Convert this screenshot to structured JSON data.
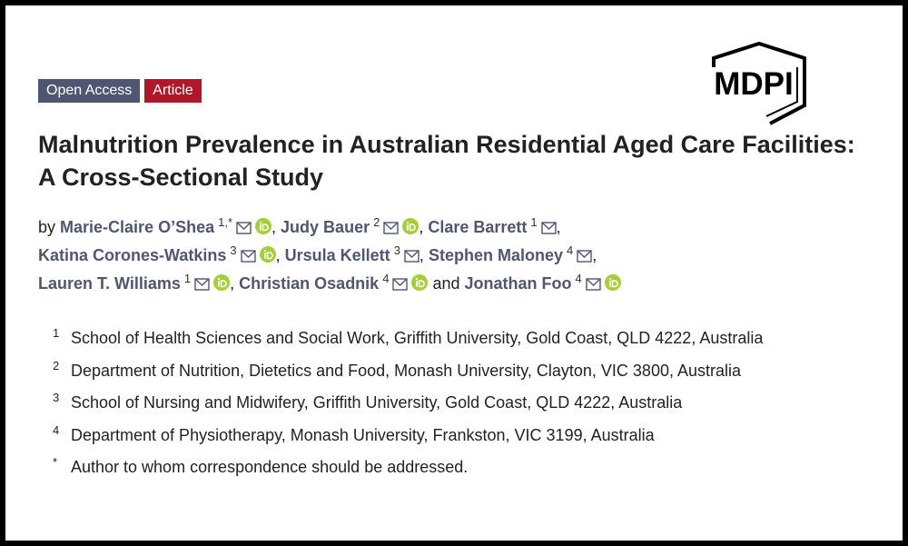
{
  "badges": [
    "Open Access",
    "Article"
  ],
  "publisher": "MDPI",
  "title": "Malnutrition Prevalence in Australian Residential Aged Care Facilities: A Cross-Sectional Study",
  "byline": {
    "prefix": "by",
    "conjunction": "and",
    "authors": [
      {
        "name": "Marie-Claire O’Shea",
        "affiliation": "1,*",
        "orcid": true,
        "separator": ","
      },
      {
        "name": "Judy Bauer",
        "affiliation": "2",
        "orcid": true,
        "separator": ","
      },
      {
        "name": "Clare Barrett",
        "affiliation": "1",
        "orcid": false,
        "separator": ","
      },
      {
        "name": "Katina Corones-Watkins",
        "affiliation": "3",
        "orcid": true,
        "separator": ","
      },
      {
        "name": "Ursula Kellett",
        "affiliation": "3",
        "orcid": false,
        "separator": ","
      },
      {
        "name": "Stephen Maloney",
        "affiliation": "4",
        "orcid": false,
        "separator": ","
      },
      {
        "name": "Lauren T. Williams",
        "affiliation": "1",
        "orcid": true,
        "separator": ","
      },
      {
        "name": "Christian Osadnik",
        "affiliation": "4",
        "orcid": true
      },
      {
        "name": "Jonathan Foo",
        "affiliation": "4",
        "orcid": true
      }
    ]
  },
  "affiliations": [
    {
      "marker": "1",
      "text": "School of Health Sciences and Social Work, Griffith University, Gold Coast, QLD 4222, Australia"
    },
    {
      "marker": "2",
      "text": "Department of Nutrition, Dietetics and Food, Monash University, Clayton, VIC 3800, Australia"
    },
    {
      "marker": "3",
      "text": "School of Nursing and Midwifery, Griffith University, Gold Coast, QLD 4222, Australia"
    },
    {
      "marker": "4",
      "text": "Department of Physiotherapy, Monash University, Frankston, VIC 3199, Australia"
    },
    {
      "marker": "*",
      "text": "Author to whom correspondence should be addressed."
    }
  ]
}
